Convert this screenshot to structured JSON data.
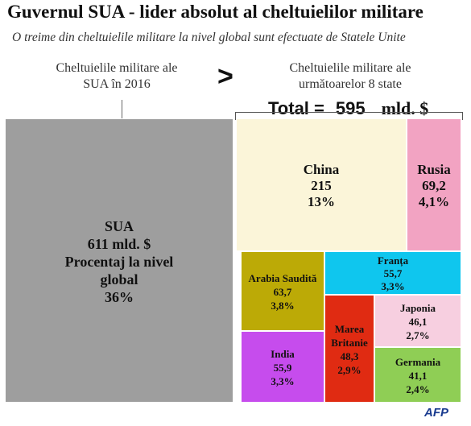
{
  "header": {
    "title": "Guvernul SUA - lider absolut al cheltuielilor militare",
    "subtitle": "O treime din cheltuielile militare la nivel global sunt efectuate de Statele Unite"
  },
  "left_caption": [
    "Cheltuielile militare ale",
    "SUA în 2016"
  ],
  "comparison_symbol": ">",
  "right_caption": [
    "Cheltuielile militare ale",
    "următoarelor 8 state"
  ],
  "total": {
    "label": "Total =",
    "value": "595",
    "unit": "mld. $"
  },
  "logo": "AFP",
  "chart_data": {
    "type": "treemap",
    "title": "Guvernul SUA - lider absolut al cheltuielilor militare",
    "subtitle": "O treime din cheltuielile militare la nivel global sunt efectuate de Statele Unite",
    "unit": "mld. $",
    "groups": [
      {
        "caption": "Cheltuielile militare ale SUA în 2016",
        "total": 611,
        "items": [
          {
            "name": "SUA",
            "value": 611,
            "share": "36%",
            "color": "#9e9e9e",
            "lines": [
              "SUA",
              "611 mld. $",
              "Procentaj la nivel",
              "global",
              "36%"
            ]
          }
        ]
      },
      {
        "caption": "Cheltuielile militare ale următoarelor 8 state",
        "total": 595,
        "items": [
          {
            "name": "China",
            "value": 215,
            "share": "13%",
            "color": "#fbf5d9",
            "lines": [
              "China",
              "215",
              "13%"
            ]
          },
          {
            "name": "Rusia",
            "value": 69.2,
            "share": "4,1%",
            "color": "#f2a3c2",
            "lines": [
              "Rusia",
              "69,2",
              "4,1%"
            ]
          },
          {
            "name": "Arabia Saudită",
            "value": 63.7,
            "share": "3,8%",
            "color": "#bcaa06",
            "lines": [
              "Arabia Saudită",
              "63,7",
              "3,8%"
            ]
          },
          {
            "name": "Franța",
            "value": 55.7,
            "share": "3,3%",
            "color": "#0fc6ee",
            "lines": [
              "Franța",
              "55,7",
              "3,3%"
            ]
          },
          {
            "name": "India",
            "value": 55.9,
            "share": "3,3%",
            "color": "#c64ced",
            "lines": [
              "India",
              "55,9",
              "3,3%"
            ]
          },
          {
            "name": "Marea Britanie",
            "value": 48.3,
            "share": "2,9%",
            "color": "#e02b12",
            "lines": [
              "Marea",
              "Britanie",
              "48,3",
              "2,9%"
            ]
          },
          {
            "name": "Japonia",
            "value": 46.1,
            "share": "2,7%",
            "color": "#f7cfe0",
            "lines": [
              "Japonia",
              "46,1",
              "2,7%"
            ]
          },
          {
            "name": "Germania",
            "value": 41.1,
            "share": "2,4%",
            "color": "#8fce55",
            "lines": [
              "Germania",
              "41,1",
              "2,4%"
            ]
          }
        ]
      }
    ]
  }
}
